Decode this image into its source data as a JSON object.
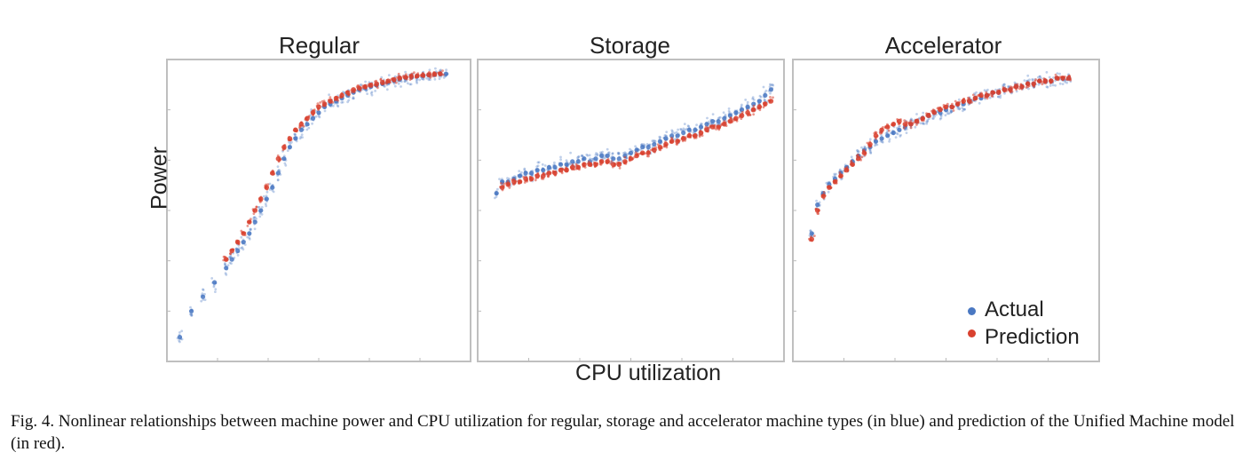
{
  "chart_data": [
    {
      "type": "scatter",
      "title": "Regular",
      "series": [
        {
          "name": "Actual",
          "color": "#4a78c2",
          "x": [
            0.02,
            0.06,
            0.1,
            0.14,
            0.18,
            0.2,
            0.22,
            0.24,
            0.26,
            0.28,
            0.3,
            0.32,
            0.34,
            0.36,
            0.38,
            0.4,
            0.42,
            0.44,
            0.46,
            0.48,
            0.5,
            0.52,
            0.54,
            0.56,
            0.58,
            0.6,
            0.62,
            0.64,
            0.66,
            0.68,
            0.7,
            0.72,
            0.74,
            0.76,
            0.78,
            0.8,
            0.82,
            0.84,
            0.86,
            0.88,
            0.9,
            0.92,
            0.94
          ],
          "y": [
            0.06,
            0.15,
            0.2,
            0.25,
            0.3,
            0.33,
            0.36,
            0.39,
            0.42,
            0.46,
            0.5,
            0.54,
            0.58,
            0.63,
            0.68,
            0.72,
            0.75,
            0.78,
            0.8,
            0.82,
            0.84,
            0.86,
            0.87,
            0.88,
            0.89,
            0.9,
            0.91,
            0.92,
            0.925,
            0.93,
            0.935,
            0.94,
            0.945,
            0.95,
            0.955,
            0.96,
            0.963,
            0.966,
            0.968,
            0.97,
            0.972,
            0.974,
            0.975
          ]
        },
        {
          "name": "Prediction",
          "color": "#d9412f",
          "x": [
            0.18,
            0.2,
            0.22,
            0.24,
            0.26,
            0.28,
            0.3,
            0.32,
            0.34,
            0.36,
            0.38,
            0.4,
            0.42,
            0.44,
            0.46,
            0.48,
            0.5,
            0.52,
            0.54,
            0.56,
            0.58,
            0.6,
            0.62,
            0.64,
            0.66,
            0.68,
            0.7,
            0.72,
            0.74,
            0.76,
            0.78,
            0.8,
            0.82,
            0.84,
            0.86,
            0.88,
            0.9,
            0.92
          ],
          "y": [
            0.33,
            0.36,
            0.39,
            0.42,
            0.46,
            0.5,
            0.54,
            0.58,
            0.63,
            0.68,
            0.72,
            0.75,
            0.78,
            0.8,
            0.82,
            0.84,
            0.86,
            0.87,
            0.88,
            0.89,
            0.9,
            0.91,
            0.92,
            0.925,
            0.93,
            0.935,
            0.94,
            0.945,
            0.95,
            0.955,
            0.96,
            0.963,
            0.966,
            0.968,
            0.97,
            0.972,
            0.974,
            0.975
          ]
        }
      ]
    },
    {
      "type": "scatter",
      "title": "Storage",
      "series": [
        {
          "name": "Actual",
          "color": "#4a78c2",
          "x": [
            0.04,
            0.06,
            0.08,
            0.1,
            0.12,
            0.14,
            0.16,
            0.18,
            0.2,
            0.22,
            0.24,
            0.26,
            0.28,
            0.3,
            0.32,
            0.34,
            0.36,
            0.38,
            0.4,
            0.42,
            0.44,
            0.46,
            0.48,
            0.5,
            0.52,
            0.54,
            0.56,
            0.58,
            0.6,
            0.62,
            0.64,
            0.66,
            0.68,
            0.7,
            0.72,
            0.74,
            0.76,
            0.78,
            0.8,
            0.82,
            0.84,
            0.86,
            0.88,
            0.9,
            0.92,
            0.94,
            0.96,
            0.98
          ],
          "y": [
            0.56,
            0.6,
            0.6,
            0.61,
            0.62,
            0.63,
            0.63,
            0.64,
            0.64,
            0.65,
            0.65,
            0.66,
            0.66,
            0.67,
            0.67,
            0.68,
            0.67,
            0.68,
            0.69,
            0.69,
            0.68,
            0.68,
            0.69,
            0.7,
            0.71,
            0.72,
            0.72,
            0.73,
            0.74,
            0.75,
            0.76,
            0.76,
            0.77,
            0.78,
            0.78,
            0.79,
            0.8,
            0.81,
            0.81,
            0.82,
            0.83,
            0.84,
            0.85,
            0.86,
            0.87,
            0.88,
            0.9,
            0.92
          ]
        },
        {
          "name": "Prediction",
          "color": "#d9412f",
          "x": [
            0.06,
            0.08,
            0.1,
            0.12,
            0.14,
            0.16,
            0.18,
            0.2,
            0.22,
            0.24,
            0.26,
            0.28,
            0.3,
            0.32,
            0.34,
            0.36,
            0.38,
            0.4,
            0.42,
            0.44,
            0.46,
            0.48,
            0.5,
            0.52,
            0.54,
            0.56,
            0.58,
            0.6,
            0.62,
            0.64,
            0.66,
            0.68,
            0.7,
            0.72,
            0.74,
            0.76,
            0.78,
            0.8,
            0.82,
            0.84,
            0.86,
            0.88,
            0.9,
            0.92,
            0.94,
            0.96,
            0.98
          ],
          "y": [
            0.58,
            0.59,
            0.6,
            0.6,
            0.61,
            0.61,
            0.62,
            0.62,
            0.63,
            0.63,
            0.64,
            0.64,
            0.65,
            0.65,
            0.66,
            0.66,
            0.66,
            0.67,
            0.67,
            0.66,
            0.66,
            0.67,
            0.68,
            0.69,
            0.7,
            0.7,
            0.71,
            0.72,
            0.73,
            0.74,
            0.74,
            0.75,
            0.76,
            0.76,
            0.77,
            0.78,
            0.79,
            0.79,
            0.8,
            0.81,
            0.82,
            0.83,
            0.84,
            0.85,
            0.86,
            0.87,
            0.88
          ]
        }
      ]
    },
    {
      "type": "scatter",
      "title": "Accelerator",
      "series": [
        {
          "name": "Actual",
          "color": "#4a78c2",
          "x": [
            0.04,
            0.06,
            0.08,
            0.1,
            0.12,
            0.14,
            0.16,
            0.18,
            0.2,
            0.22,
            0.24,
            0.26,
            0.28,
            0.3,
            0.32,
            0.34,
            0.36,
            0.38,
            0.4,
            0.42,
            0.44,
            0.46,
            0.48,
            0.5,
            0.52,
            0.54,
            0.56,
            0.58,
            0.6,
            0.62,
            0.64,
            0.66,
            0.68,
            0.7,
            0.72,
            0.74,
            0.76,
            0.78,
            0.8,
            0.82,
            0.84,
            0.86,
            0.88,
            0.9,
            0.92
          ],
          "y": [
            0.42,
            0.52,
            0.56,
            0.59,
            0.61,
            0.63,
            0.65,
            0.67,
            0.69,
            0.71,
            0.72,
            0.74,
            0.75,
            0.76,
            0.77,
            0.78,
            0.79,
            0.8,
            0.81,
            0.82,
            0.83,
            0.84,
            0.84,
            0.85,
            0.86,
            0.87,
            0.87,
            0.88,
            0.89,
            0.89,
            0.9,
            0.91,
            0.91,
            0.92,
            0.92,
            0.93,
            0.93,
            0.94,
            0.94,
            0.95,
            0.95,
            0.95,
            0.96,
            0.96,
            0.96
          ]
        },
        {
          "name": "Prediction",
          "color": "#d9412f",
          "x": [
            0.04,
            0.06,
            0.08,
            0.1,
            0.12,
            0.14,
            0.16,
            0.18,
            0.2,
            0.22,
            0.24,
            0.26,
            0.28,
            0.3,
            0.32,
            0.34,
            0.36,
            0.38,
            0.4,
            0.42,
            0.44,
            0.46,
            0.48,
            0.5,
            0.52,
            0.54,
            0.56,
            0.58,
            0.6,
            0.62,
            0.64,
            0.66,
            0.68,
            0.7,
            0.72,
            0.74,
            0.76,
            0.78,
            0.8,
            0.82,
            0.84,
            0.86,
            0.88,
            0.9,
            0.92
          ],
          "y": [
            0.4,
            0.5,
            0.55,
            0.58,
            0.6,
            0.62,
            0.64,
            0.66,
            0.68,
            0.7,
            0.73,
            0.76,
            0.78,
            0.79,
            0.8,
            0.81,
            0.8,
            0.8,
            0.81,
            0.82,
            0.83,
            0.84,
            0.85,
            0.86,
            0.86,
            0.87,
            0.88,
            0.88,
            0.89,
            0.9,
            0.9,
            0.91,
            0.91,
            0.92,
            0.92,
            0.93,
            0.93,
            0.94,
            0.94,
            0.95,
            0.95,
            0.95,
            0.96,
            0.96,
            0.96
          ]
        }
      ]
    }
  ],
  "labels": {
    "ylabel": "Power",
    "xlabel": "CPU utilization"
  },
  "legend": {
    "actual": "Actual",
    "prediction": "Prediction",
    "actual_color": "#4a78c2",
    "prediction_color": "#d9412f"
  },
  "caption": "Fig. 4.  Nonlinear relationships between machine power and CPU utilization for regular, storage and accelerator machine types (in blue) and prediction of the Unified Machine model (in red)."
}
